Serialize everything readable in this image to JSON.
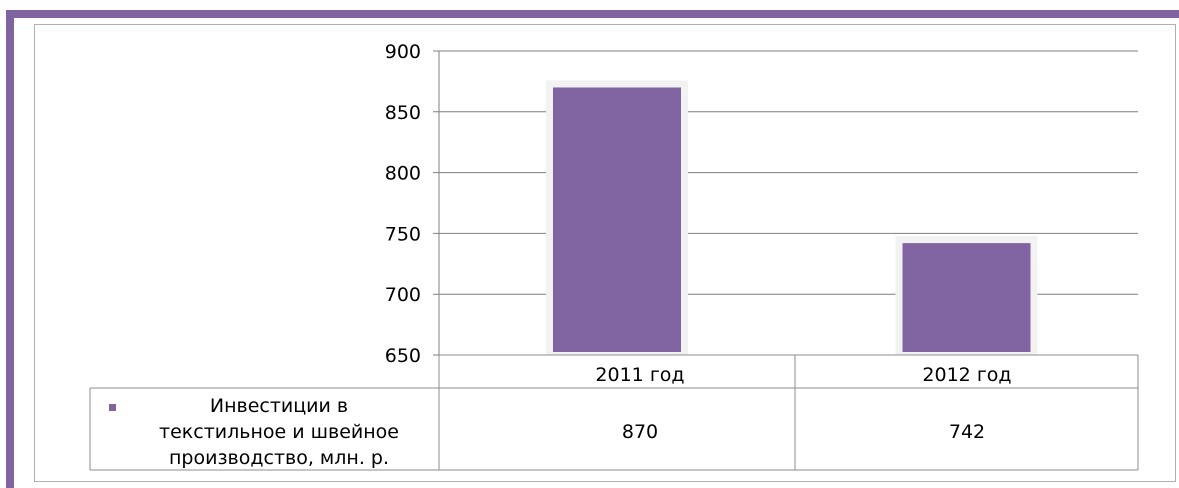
{
  "colors": {
    "frame": "#8064a2",
    "bar": "#8064a2",
    "grid": "#7f7f7f"
  },
  "chart_data": {
    "type": "bar",
    "categories": [
      "2011 год",
      "2012 год"
    ],
    "series": [
      {
        "name": "Инвестиции в текстильное и швейное производство, млн. р.",
        "values": [
          870,
          742
        ],
        "color": "#8064a2"
      }
    ],
    "ylim": [
      650,
      900
    ],
    "yticks": [
      "650",
      "700",
      "750",
      "800",
      "850",
      "900"
    ],
    "grid": true,
    "legend": "data-table",
    "table": {
      "legend_label_lines": [
        "Инвестиции в",
        "текстильное и швейное",
        "производство, млн. р."
      ],
      "row_values": [
        "870",
        "742"
      ]
    }
  }
}
